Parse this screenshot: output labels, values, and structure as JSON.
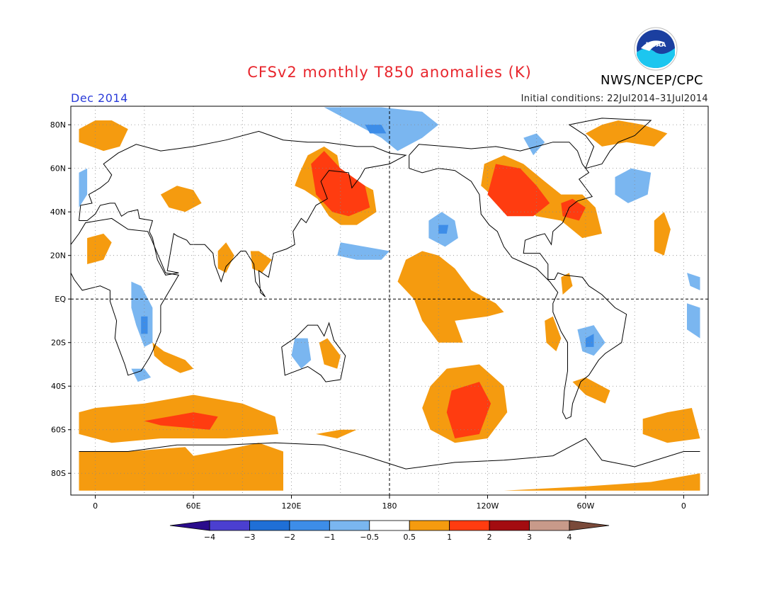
{
  "title": "CFSv2 monthly T850 anomalies (K)",
  "period": "Dec 2014",
  "initial_conditions": "Initial conditions: 22Jul2014–31Jul2014",
  "agency": "NWS/NCEP/CPC",
  "logo_text": "NOAA",
  "lat_labels": [
    {
      "value": 80,
      "label": "80N"
    },
    {
      "value": 60,
      "label": "60N"
    },
    {
      "value": 40,
      "label": "40N"
    },
    {
      "value": 20,
      "label": "20N"
    },
    {
      "value": 0,
      "label": "EQ"
    },
    {
      "value": -20,
      "label": "20S"
    },
    {
      "value": -40,
      "label": "40S"
    },
    {
      "value": -60,
      "label": "60S"
    },
    {
      "value": -80,
      "label": "80S"
    }
  ],
  "lon_labels": [
    {
      "value": 0,
      "label": "0"
    },
    {
      "value": 60,
      "label": "60E"
    },
    {
      "value": 120,
      "label": "120E"
    },
    {
      "value": 180,
      "label": "180"
    },
    {
      "value": 240,
      "label": "120W"
    },
    {
      "value": 300,
      "label": "60W"
    },
    {
      "value": 360,
      "label": "0"
    }
  ],
  "colorbar": {
    "labels": [
      "−4",
      "−3",
      "−2",
      "−1",
      "−0.5",
      "0.5",
      "1",
      "2",
      "3",
      "4"
    ],
    "colors": [
      "#2a0c8c",
      "#4b3fd0",
      "#1f6fd6",
      "#3d8de8",
      "#7ab6f0",
      "#ffffff",
      "#f59b0f",
      "#ff3c10",
      "#a30c10",
      "#c89a8a",
      "#7a4a3a"
    ]
  },
  "anomalies": [
    {
      "level": "pos1",
      "pts": [
        [
          -10,
          78
        ],
        [
          0,
          82
        ],
        [
          10,
          82
        ],
        [
          20,
          78
        ],
        [
          15,
          70
        ],
        [
          5,
          68
        ],
        [
          -10,
          72
        ]
      ]
    },
    {
      "level": "pos1",
      "pts": [
        [
          -5,
          28
        ],
        [
          5,
          30
        ],
        [
          10,
          26
        ],
        [
          5,
          18
        ],
        [
          -5,
          16
        ]
      ]
    },
    {
      "level": "pos1",
      "pts": [
        [
          40,
          48
        ],
        [
          50,
          52
        ],
        [
          60,
          50
        ],
        [
          65,
          44
        ],
        [
          55,
          40
        ],
        [
          45,
          42
        ]
      ]
    },
    {
      "level": "pos1",
      "pts": [
        [
          75,
          22
        ],
        [
          80,
          26
        ],
        [
          85,
          20
        ],
        [
          80,
          12
        ],
        [
          75,
          14
        ]
      ]
    },
    {
      "level": "pos1",
      "pts": [
        [
          95,
          22
        ],
        [
          100,
          22
        ],
        [
          108,
          18
        ],
        [
          102,
          12
        ],
        [
          96,
          14
        ]
      ]
    },
    {
      "level": "pos1",
      "pts": [
        [
          125,
          58
        ],
        [
          130,
          66
        ],
        [
          140,
          70
        ],
        [
          148,
          66
        ],
        [
          150,
          58
        ],
        [
          160,
          54
        ],
        [
          170,
          50
        ],
        [
          172,
          40
        ],
        [
          160,
          34
        ],
        [
          150,
          34
        ],
        [
          143,
          38
        ],
        [
          136,
          46
        ],
        [
          128,
          50
        ],
        [
          122,
          52
        ]
      ]
    },
    {
      "level": "pos1",
      "pts": [
        [
          190,
          18
        ],
        [
          200,
          22
        ],
        [
          210,
          20
        ],
        [
          220,
          14
        ],
        [
          230,
          4
        ],
        [
          245,
          -2
        ],
        [
          250,
          -6
        ],
        [
          240,
          -8
        ],
        [
          220,
          -10
        ],
        [
          225,
          -20
        ],
        [
          210,
          -20
        ],
        [
          200,
          -10
        ],
        [
          195,
          0
        ],
        [
          185,
          8
        ]
      ]
    },
    {
      "level": "pos1",
      "pts": [
        [
          238,
          62
        ],
        [
          250,
          66
        ],
        [
          262,
          62
        ],
        [
          275,
          54
        ],
        [
          285,
          48
        ],
        [
          298,
          48
        ],
        [
          306,
          42
        ],
        [
          310,
          30
        ],
        [
          298,
          28
        ],
        [
          285,
          36
        ],
        [
          270,
          38
        ],
        [
          255,
          44
        ],
        [
          245,
          46
        ],
        [
          236,
          52
        ]
      ]
    },
    {
      "level": "pos1",
      "pts": [
        [
          300,
          76
        ],
        [
          310,
          80
        ],
        [
          320,
          82
        ],
        [
          335,
          80
        ],
        [
          350,
          76
        ],
        [
          342,
          70
        ],
        [
          325,
          72
        ],
        [
          310,
          70
        ]
      ]
    },
    {
      "level": "pos1",
      "pts": [
        [
          342,
          36
        ],
        [
          348,
          40
        ],
        [
          352,
          32
        ],
        [
          348,
          20
        ],
        [
          342,
          22
        ]
      ]
    },
    {
      "level": "pos1",
      "pts": [
        [
          285,
          10
        ],
        [
          290,
          12
        ],
        [
          292,
          6
        ],
        [
          286,
          2
        ]
      ]
    },
    {
      "level": "pos1",
      "pts": [
        [
          275,
          -10
        ],
        [
          280,
          -8
        ],
        [
          285,
          -18
        ],
        [
          282,
          -24
        ],
        [
          276,
          -20
        ]
      ]
    },
    {
      "level": "pos1",
      "pts": [
        [
          292,
          -38
        ],
        [
          300,
          -36
        ],
        [
          315,
          -42
        ],
        [
          312,
          -48
        ],
        [
          300,
          -44
        ]
      ]
    },
    {
      "level": "pos1",
      "pts": [
        [
          35,
          -20
        ],
        [
          42,
          -24
        ],
        [
          55,
          -28
        ],
        [
          60,
          -32
        ],
        [
          52,
          -34
        ],
        [
          42,
          -30
        ],
        [
          36,
          -26
        ]
      ]
    },
    {
      "level": "pos1",
      "pts": [
        [
          137,
          -20
        ],
        [
          142,
          -18
        ],
        [
          150,
          -26
        ],
        [
          148,
          -32
        ],
        [
          140,
          -30
        ]
      ]
    },
    {
      "level": "pos1",
      "pts": [
        [
          -10,
          -52
        ],
        [
          0,
          -50
        ],
        [
          30,
          -48
        ],
        [
          60,
          -44
        ],
        [
          90,
          -48
        ],
        [
          110,
          -54
        ],
        [
          112,
          -62
        ],
        [
          80,
          -64
        ],
        [
          40,
          -64
        ],
        [
          10,
          -66
        ],
        [
          -10,
          -62
        ]
      ]
    },
    {
      "level": "pos1",
      "pts": [
        [
          135,
          -62
        ],
        [
          150,
          -60
        ],
        [
          160,
          -60
        ],
        [
          148,
          -64
        ]
      ]
    },
    {
      "level": "pos1",
      "pts": [
        [
          205,
          -40
        ],
        [
          215,
          -32
        ],
        [
          235,
          -30
        ],
        [
          250,
          -40
        ],
        [
          252,
          -52
        ],
        [
          240,
          -64
        ],
        [
          220,
          -66
        ],
        [
          205,
          -60
        ],
        [
          200,
          -50
        ]
      ]
    },
    {
      "level": "pos1",
      "pts": [
        [
          335,
          -55
        ],
        [
          350,
          -52
        ],
        [
          365,
          -50
        ],
        [
          370,
          -64
        ],
        [
          350,
          -66
        ],
        [
          335,
          -62
        ]
      ]
    },
    {
      "level": "pos1",
      "pts": [
        [
          -10,
          -70
        ],
        [
          20,
          -70
        ],
        [
          55,
          -68
        ],
        [
          60,
          -72
        ],
        [
          75,
          -70
        ],
        [
          100,
          -66
        ],
        [
          115,
          -70
        ],
        [
          115,
          -88
        ],
        [
          -10,
          -88
        ]
      ]
    },
    {
      "level": "pos1",
      "pts": [
        [
          250,
          -88
        ],
        [
          300,
          -86
        ],
        [
          340,
          -84
        ],
        [
          370,
          -80
        ],
        [
          370,
          -88
        ]
      ]
    },
    {
      "level": "pos2",
      "pts": [
        [
          132,
          62
        ],
        [
          140,
          68
        ],
        [
          150,
          60
        ],
        [
          165,
          52
        ],
        [
          168,
          42
        ],
        [
          155,
          38
        ],
        [
          145,
          40
        ],
        [
          135,
          48
        ]
      ]
    },
    {
      "level": "pos2",
      "pts": [
        [
          245,
          62
        ],
        [
          260,
          60
        ],
        [
          270,
          52
        ],
        [
          278,
          44
        ],
        [
          268,
          38
        ],
        [
          252,
          38
        ],
        [
          240,
          48
        ]
      ]
    },
    {
      "level": "pos2",
      "pts": [
        [
          285,
          44
        ],
        [
          292,
          46
        ],
        [
          300,
          42
        ],
        [
          296,
          36
        ],
        [
          286,
          38
        ]
      ]
    },
    {
      "level": "pos2",
      "pts": [
        [
          30,
          -56
        ],
        [
          60,
          -52
        ],
        [
          75,
          -54
        ],
        [
          70,
          -60
        ],
        [
          40,
          -58
        ]
      ]
    },
    {
      "level": "pos2",
      "pts": [
        [
          218,
          -42
        ],
        [
          235,
          -38
        ],
        [
          242,
          -48
        ],
        [
          235,
          -62
        ],
        [
          220,
          -64
        ],
        [
          215,
          -52
        ]
      ]
    },
    {
      "level": "neg1",
      "pts": [
        [
          -10,
          58
        ],
        [
          -5,
          60
        ],
        [
          -5,
          48
        ],
        [
          -10,
          42
        ]
      ]
    },
    {
      "level": "neg1",
      "pts": [
        [
          140,
          88
        ],
        [
          175,
          88
        ],
        [
          200,
          86
        ],
        [
          210,
          80
        ],
        [
          200,
          74
        ],
        [
          185,
          68
        ],
        [
          175,
          74
        ],
        [
          155,
          82
        ]
      ]
    },
    {
      "level": "neg1",
      "pts": [
        [
          204,
          36
        ],
        [
          212,
          40
        ],
        [
          220,
          36
        ],
        [
          222,
          28
        ],
        [
          214,
          24
        ],
        [
          204,
          28
        ]
      ]
    },
    {
      "level": "neg1",
      "pts": [
        [
          150,
          26
        ],
        [
          165,
          24
        ],
        [
          180,
          22
        ],
        [
          175,
          18
        ],
        [
          160,
          18
        ],
        [
          148,
          20
        ]
      ]
    },
    {
      "level": "neg1",
      "pts": [
        [
          262,
          74
        ],
        [
          270,
          76
        ],
        [
          275,
          72
        ],
        [
          268,
          66
        ]
      ]
    },
    {
      "level": "neg1",
      "pts": [
        [
          318,
          56
        ],
        [
          328,
          60
        ],
        [
          340,
          58
        ],
        [
          338,
          48
        ],
        [
          326,
          44
        ],
        [
          318,
          48
        ]
      ]
    },
    {
      "level": "neg1",
      "pts": [
        [
          22,
          8
        ],
        [
          28,
          6
        ],
        [
          35,
          -4
        ],
        [
          35,
          -20
        ],
        [
          30,
          -22
        ],
        [
          25,
          -12
        ],
        [
          22,
          -4
        ]
      ]
    },
    {
      "level": "neg1",
      "pts": [
        [
          22,
          -32
        ],
        [
          30,
          -32
        ],
        [
          34,
          -36
        ],
        [
          26,
          -38
        ]
      ]
    },
    {
      "level": "neg1",
      "pts": [
        [
          122,
          -18
        ],
        [
          130,
          -18
        ],
        [
          132,
          -28
        ],
        [
          126,
          -32
        ],
        [
          120,
          -26
        ]
      ]
    },
    {
      "level": "neg1",
      "pts": [
        [
          295,
          -14
        ],
        [
          305,
          -12
        ],
        [
          312,
          -20
        ],
        [
          305,
          -26
        ],
        [
          298,
          -24
        ]
      ]
    },
    {
      "level": "neg1",
      "pts": [
        [
          362,
          -2
        ],
        [
          370,
          -4
        ],
        [
          370,
          -18
        ],
        [
          362,
          -14
        ]
      ]
    },
    {
      "level": "neg1",
      "pts": [
        [
          362,
          12
        ],
        [
          370,
          10
        ],
        [
          370,
          4
        ],
        [
          364,
          6
        ]
      ]
    },
    {
      "level": "neg2",
      "pts": [
        [
          210,
          34
        ],
        [
          216,
          34
        ],
        [
          215,
          30
        ],
        [
          210,
          30
        ]
      ]
    },
    {
      "level": "neg2",
      "pts": [
        [
          300,
          -18
        ],
        [
          305,
          -16
        ],
        [
          305,
          -22
        ],
        [
          300,
          -22
        ]
      ]
    },
    {
      "level": "neg2",
      "pts": [
        [
          165,
          80
        ],
        [
          175,
          80
        ],
        [
          178,
          76
        ],
        [
          168,
          76
        ]
      ]
    },
    {
      "level": "neg2",
      "pts": [
        [
          28,
          -8
        ],
        [
          32,
          -8
        ],
        [
          32,
          -16
        ],
        [
          28,
          -16
        ]
      ]
    }
  ]
}
